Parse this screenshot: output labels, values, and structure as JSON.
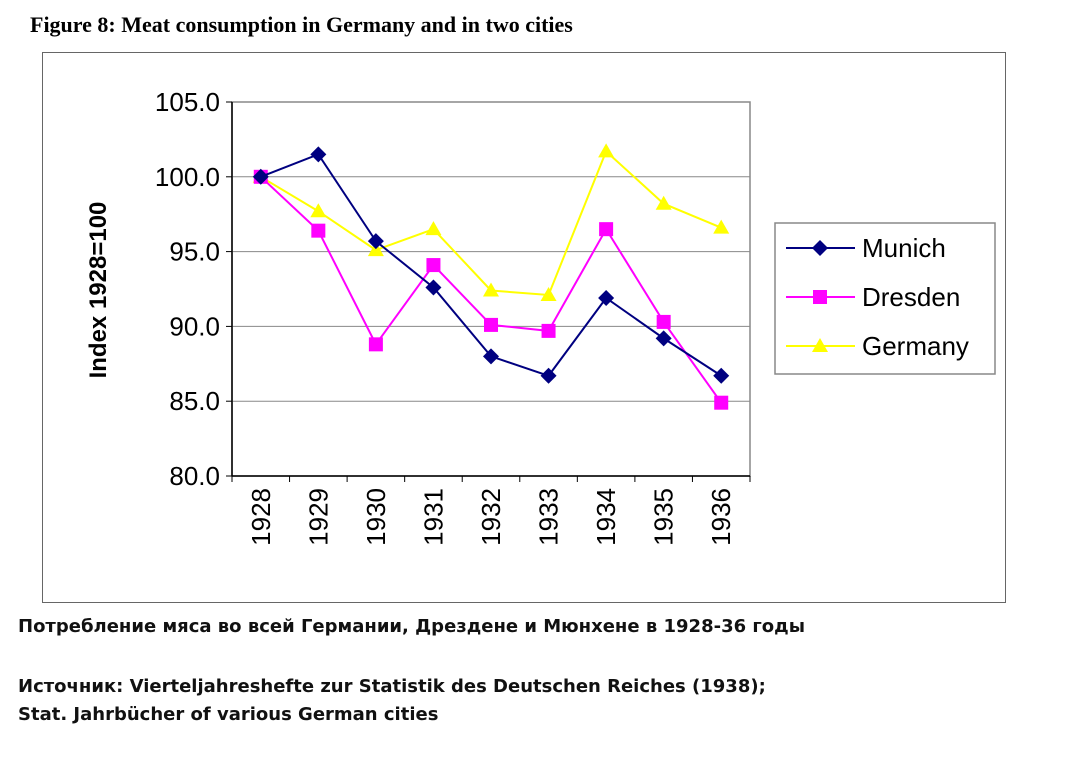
{
  "chart_data": {
    "type": "line",
    "title": "Figure 8: Meat consumption in Germany and in two cities",
    "xlabel": "",
    "ylabel": "Index 1928=100",
    "ylim": [
      80,
      105
    ],
    "yticks": [
      "80.0",
      "85.0",
      "90.0",
      "95.0",
      "100.0",
      "105.0"
    ],
    "categories": [
      "1928",
      "1929",
      "1930",
      "1931",
      "1932",
      "1933",
      "1934",
      "1935",
      "1936"
    ],
    "grid": true,
    "legend": "right",
    "series": [
      {
        "name": "Munich",
        "color": "#000080",
        "marker": "diamond",
        "values": [
          100,
          101.5,
          95.7,
          92.6,
          88.0,
          86.7,
          91.9,
          89.2,
          86.7
        ]
      },
      {
        "name": "Dresden",
        "color": "#ff00ff",
        "marker": "square",
        "values": [
          100,
          96.4,
          88.8,
          94.1,
          90.1,
          89.7,
          96.5,
          90.3,
          84.9
        ]
      },
      {
        "name": "Germany",
        "color": "#ffff00",
        "marker": "triangle",
        "values": [
          100,
          97.7,
          95.1,
          96.5,
          92.4,
          92.1,
          101.7,
          98.2,
          96.6
        ]
      }
    ]
  },
  "captions": {
    "ru": "Потребление мяса во всей Германии, Дрездене и Мюнхене в 1928-36 годы",
    "source1": "Источник: Vierteljahreshefte zur Statistik des Deutschen Reiches (1938);",
    "source2": "Stat. Jahrbücher of various German cities"
  }
}
